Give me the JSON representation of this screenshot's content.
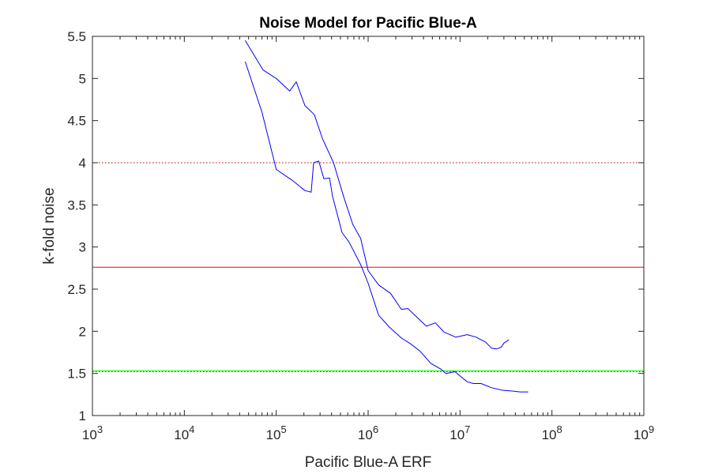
{
  "chart_data": {
    "type": "line",
    "title": "Noise Model for Pacific Blue-A",
    "xlabel": "Pacific Blue-A ERF",
    "ylabel": "k-fold noise",
    "xscale": "log",
    "xlim": [
      1000,
      1000000000
    ],
    "ylim": [
      1,
      5.5
    ],
    "grid": false,
    "legend": "none",
    "x_ticks": [
      {
        "value": 1000,
        "base": "10",
        "exp": "3"
      },
      {
        "value": 10000,
        "base": "10",
        "exp": "4"
      },
      {
        "value": 100000,
        "base": "10",
        "exp": "5"
      },
      {
        "value": 1000000,
        "base": "10",
        "exp": "6"
      },
      {
        "value": 10000000,
        "base": "10",
        "exp": "7"
      },
      {
        "value": 100000000,
        "base": "10",
        "exp": "8"
      },
      {
        "value": 1000000000,
        "base": "10",
        "exp": "9"
      }
    ],
    "y_ticks": [
      {
        "value": 1,
        "label": "1"
      },
      {
        "value": 1.5,
        "label": "1.5"
      },
      {
        "value": 2,
        "label": "2"
      },
      {
        "value": 2.5,
        "label": "2.5"
      },
      {
        "value": 3,
        "label": "3"
      },
      {
        "value": 3.5,
        "label": "3.5"
      },
      {
        "value": 4,
        "label": "4"
      },
      {
        "value": 4.5,
        "label": "4.5"
      },
      {
        "value": 5,
        "label": "5"
      },
      {
        "value": 5.5,
        "label": "5.5"
      }
    ],
    "series": [
      {
        "color": "#0000ff",
        "style": "solid",
        "x": [
          46000,
          72000,
          100000,
          140000,
          165000,
          205000,
          260000,
          320000,
          420000,
          540000,
          680000,
          830000,
          1000000,
          1300000,
          1750000,
          2300000,
          2700000,
          3300000,
          4300000,
          5400000,
          6700000,
          9000000,
          12000000,
          15000000,
          19000000,
          22000000,
          25000000,
          28000000,
          30000000,
          34000000
        ],
        "y": [
          5.45,
          5.1,
          5.0,
          4.85,
          4.96,
          4.68,
          4.57,
          4.28,
          4.0,
          3.6,
          3.27,
          3.1,
          2.72,
          2.55,
          2.45,
          2.26,
          2.27,
          2.18,
          2.06,
          2.1,
          1.99,
          1.93,
          1.96,
          1.93,
          1.87,
          1.8,
          1.79,
          1.81,
          1.86,
          1.9
        ]
      },
      {
        "color": "#0000ff",
        "style": "solid",
        "x": [
          46000,
          70000,
          100000,
          150000,
          205000,
          240000,
          255000,
          290000,
          330000,
          380000,
          410000,
          520000,
          620000,
          830000,
          1000000,
          1300000,
          1700000,
          2300000,
          2900000,
          3700000,
          4800000,
          6200000,
          7000000,
          8800000,
          10000000,
          12000000,
          14000000,
          17000000,
          22000000,
          29000000,
          38000000,
          45000000,
          55000000
        ],
        "y": [
          5.2,
          4.6,
          3.92,
          3.79,
          3.67,
          3.65,
          4.0,
          4.02,
          3.81,
          3.82,
          3.6,
          3.17,
          3.06,
          2.79,
          2.57,
          2.19,
          2.05,
          1.92,
          1.85,
          1.76,
          1.62,
          1.55,
          1.5,
          1.52,
          1.47,
          1.4,
          1.38,
          1.38,
          1.33,
          1.3,
          1.29,
          1.28,
          1.28
        ]
      }
    ],
    "reference_lines": [
      {
        "y": 4.0,
        "color": "#c00000",
        "style": "dotted"
      },
      {
        "y": 2.76,
        "color": "#ff0000",
        "style": "solid"
      },
      {
        "y": 1.53,
        "color": "#00ff00",
        "style": "solid"
      },
      {
        "y": 1.52,
        "color": "#008000",
        "style": "dotted"
      }
    ]
  }
}
